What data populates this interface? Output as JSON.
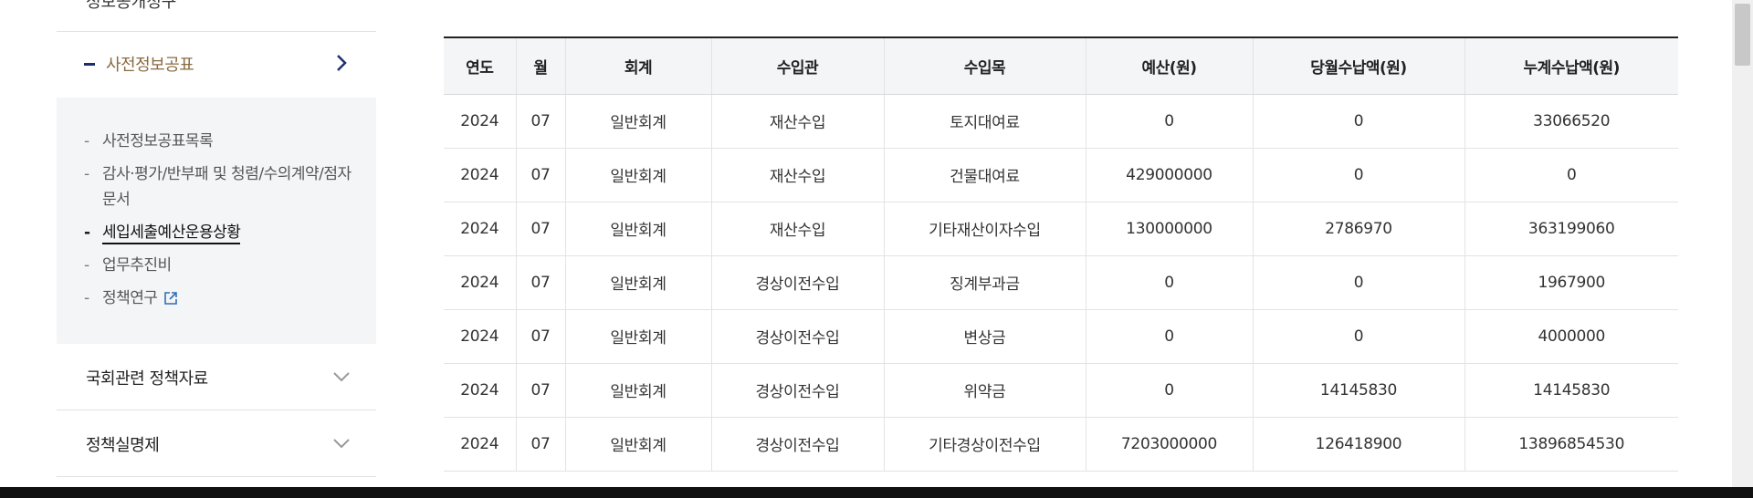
{
  "sidebar": {
    "cut_top_text": "정보공개청구",
    "active_section": {
      "label": "사전정보공표"
    },
    "sub_items": [
      {
        "label": "사전정보공표목록",
        "active": false,
        "external": false
      },
      {
        "label": "감사·평가/반부패 및 청렴/수의계약/점자문서",
        "active": false,
        "external": false
      },
      {
        "label": "세입세출예산운용상황",
        "active": true,
        "external": false
      },
      {
        "label": "업무추진비",
        "active": false,
        "external": false
      },
      {
        "label": "정책연구",
        "active": false,
        "external": true
      }
    ],
    "menus": [
      {
        "label": "국회관련 정책자료"
      },
      {
        "label": "정책실명제"
      }
    ]
  },
  "table": {
    "headers": [
      "연도",
      "월",
      "회계",
      "수입관",
      "수입목",
      "예산(원)",
      "당월수납액(원)",
      "누계수납액(원)"
    ],
    "rows": [
      [
        "2024",
        "07",
        "일반회계",
        "재산수입",
        "토지대여료",
        "0",
        "0",
        "33066520"
      ],
      [
        "2024",
        "07",
        "일반회계",
        "재산수입",
        "건물대여료",
        "429000000",
        "0",
        "0"
      ],
      [
        "2024",
        "07",
        "일반회계",
        "재산수입",
        "기타재산이자수입",
        "130000000",
        "2786970",
        "363199060"
      ],
      [
        "2024",
        "07",
        "일반회계",
        "경상이전수입",
        "징계부과금",
        "0",
        "0",
        "1967900"
      ],
      [
        "2024",
        "07",
        "일반회계",
        "경상이전수입",
        "변상금",
        "0",
        "0",
        "4000000"
      ],
      [
        "2024",
        "07",
        "일반회계",
        "경상이전수입",
        "위약금",
        "0",
        "14145830",
        "14145830"
      ],
      [
        "2024",
        "07",
        "일반회계",
        "경상이전수입",
        "기타경상이전수입",
        "7203000000",
        "126418900",
        "13896854530"
      ]
    ]
  },
  "colors": {
    "accent_text": "#8a6a42",
    "active_dash": "#1f2e6b",
    "header_bg": "#f4f5f7",
    "sub_bg": "#f4f5f7"
  }
}
